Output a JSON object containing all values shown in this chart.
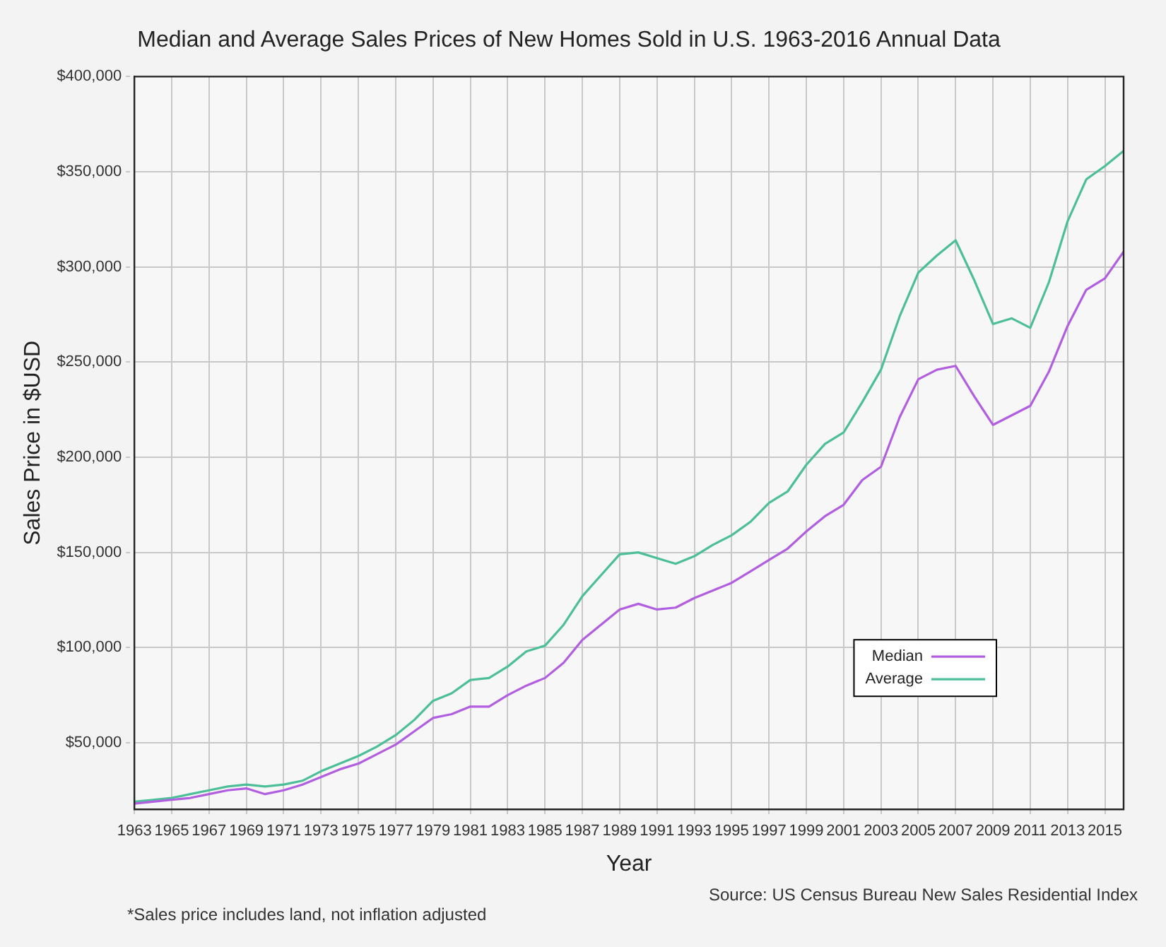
{
  "chart_data": {
    "type": "line",
    "title": "Median and Average Sales Prices of New Homes Sold in U.S. 1963-2016 Annual Data",
    "xlabel": "Year",
    "ylabel": "Sales Price in $USD",
    "x": [
      1963,
      1964,
      1965,
      1966,
      1967,
      1968,
      1969,
      1970,
      1971,
      1972,
      1973,
      1974,
      1975,
      1976,
      1977,
      1978,
      1979,
      1980,
      1981,
      1982,
      1983,
      1984,
      1985,
      1986,
      1987,
      1988,
      1989,
      1990,
      1991,
      1992,
      1993,
      1994,
      1995,
      1996,
      1997,
      1998,
      1999,
      2000,
      2001,
      2002,
      2003,
      2004,
      2005,
      2006,
      2007,
      2008,
      2009,
      2010,
      2011,
      2012,
      2013,
      2014,
      2015,
      2016
    ],
    "series": [
      {
        "name": "Median",
        "color": "#b15ee0",
        "values": [
          18000,
          19000,
          20000,
          21000,
          23000,
          25000,
          26000,
          23000,
          25000,
          28000,
          32000,
          36000,
          39000,
          44000,
          49000,
          56000,
          63000,
          65000,
          69000,
          69000,
          75000,
          80000,
          84000,
          92000,
          104000,
          112000,
          120000,
          123000,
          120000,
          121000,
          126000,
          130000,
          134000,
          140000,
          146000,
          152000,
          161000,
          169000,
          175000,
          188000,
          195000,
          221000,
          241000,
          246000,
          248000,
          232000,
          217000,
          222000,
          227000,
          245000,
          269000,
          288000,
          294000,
          308000
        ]
      },
      {
        "name": "Average",
        "color": "#4cbf98",
        "values": [
          19000,
          20000,
          21000,
          23000,
          25000,
          27000,
          28000,
          27000,
          28000,
          30000,
          35000,
          39000,
          43000,
          48000,
          54000,
          62000,
          72000,
          76000,
          83000,
          84000,
          90000,
          98000,
          101000,
          112000,
          127000,
          138000,
          149000,
          150000,
          147000,
          144000,
          148000,
          154000,
          159000,
          166000,
          176000,
          182000,
          196000,
          207000,
          213000,
          229000,
          246000,
          274000,
          297000,
          306000,
          314000,
          293000,
          270000,
          273000,
          268000,
          292000,
          324000,
          346000,
          353000,
          361000
        ]
      }
    ],
    "xlim": [
      1963,
      2016
    ],
    "xticks": [
      1963,
      1965,
      1967,
      1969,
      1971,
      1973,
      1975,
      1977,
      1979,
      1981,
      1983,
      1985,
      1987,
      1989,
      1991,
      1993,
      1995,
      1997,
      1999,
      2001,
      2003,
      2005,
      2007,
      2009,
      2011,
      2013,
      2015
    ],
    "ylim": [
      15000,
      400000
    ],
    "yticks": [
      {
        "value": 50000,
        "label": "$50,000"
      },
      {
        "value": 100000,
        "label": "$100,000"
      },
      {
        "value": 150000,
        "label": "$150,000"
      },
      {
        "value": 200000,
        "label": "$200,000"
      },
      {
        "value": 250000,
        "label": "$250,000"
      },
      {
        "value": 300000,
        "label": "$300,000"
      },
      {
        "value": 350000,
        "label": "$350,000"
      },
      {
        "value": 400000,
        "label": "$400,000"
      }
    ],
    "grid": true,
    "legend": "bottom right",
    "marker": "none",
    "line_style": "solid",
    "annotations": [
      "*Sales price includes land, not inflation adjusted",
      "Source: US Census Bureau New Sales Residential Index"
    ]
  }
}
